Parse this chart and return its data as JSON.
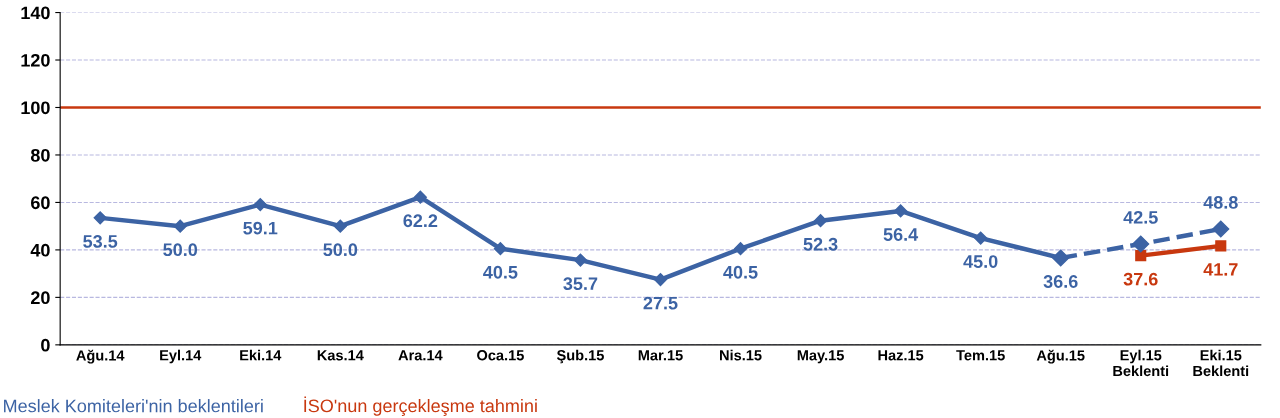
{
  "chart_data": {
    "type": "line",
    "categories": [
      "Ağu.14",
      "Eyl.14",
      "Eki.14",
      "Kas.14",
      "Ara.14",
      "Oca.15",
      "Şub.15",
      "Mar.15",
      "Nis.15",
      "May.15",
      "Haz.15",
      "Tem.15",
      "Ağu.15",
      "Eyl.15\nBeklenti",
      "Eki.15\nBeklenti"
    ],
    "series": [
      {
        "name": "Meslek Komiteleri'nin beklentileri",
        "color": "#3c63a4",
        "marker": "diamond",
        "line_style": "solid",
        "values": [
          53.5,
          50.0,
          59.1,
          50.0,
          62.2,
          40.5,
          35.7,
          27.5,
          40.5,
          52.3,
          56.4,
          45.0,
          36.6,
          null,
          null
        ],
        "value_labels": [
          "53.5",
          "50.0",
          "59.1",
          "50.0",
          "62.2",
          "40.5",
          "35.7",
          "27.5",
          "40.5",
          "52.3",
          "56.4",
          "45.0",
          "36.6",
          null,
          null
        ]
      },
      {
        "color": "#3c63a4",
        "marker": "diamond",
        "line_style": "dashed",
        "values": [
          null,
          null,
          null,
          null,
          null,
          null,
          null,
          null,
          null,
          null,
          null,
          null,
          36.6,
          42.5,
          48.8
        ],
        "value_labels": [
          null,
          null,
          null,
          null,
          null,
          null,
          null,
          null,
          null,
          null,
          null,
          null,
          null,
          "42.5",
          "48.8"
        ]
      },
      {
        "name": "İSO'nun gerçekleşme tahmini",
        "color": "#c8380f",
        "marker": "square",
        "line_style": "solid",
        "values": [
          null,
          null,
          null,
          null,
          null,
          null,
          null,
          null,
          null,
          null,
          null,
          null,
          null,
          37.6,
          41.7
        ],
        "value_labels": [
          null,
          null,
          null,
          null,
          null,
          null,
          null,
          null,
          null,
          null,
          null,
          null,
          null,
          "37.6",
          "41.7"
        ]
      }
    ],
    "ylim": [
      0,
      140
    ],
    "yticks": [
      0,
      20,
      40,
      60,
      80,
      100,
      120,
      140
    ],
    "ref_lines": [
      {
        "axis": "y",
        "value": 100,
        "color": "#c8380f",
        "line_style": "solid"
      }
    ],
    "grid": "y",
    "legend": "bottom left"
  }
}
